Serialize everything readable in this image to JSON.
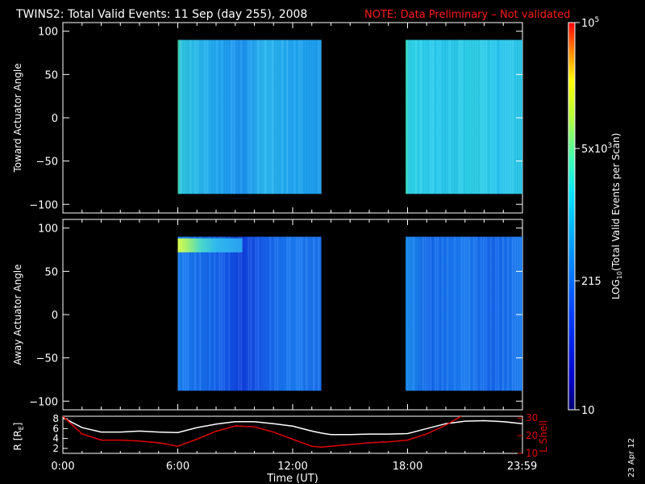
{
  "header": {
    "title": "TWINS2: Total Valid Events: 11 Sep (day 255), 2008",
    "note": "NOTE: Data Preliminary – Not validated"
  },
  "side_date": "23 Apr 12",
  "colors": {
    "background": "#000000",
    "axes": "#ffffff",
    "note": "#ff1a1a",
    "lshell": "#e00000",
    "radius": "#ffffff"
  },
  "chart_data": [
    {
      "type": "heatmap",
      "ylabel": "Toward Actuator Angle",
      "ylim": [
        -110,
        110
      ],
      "yticks": [
        -100,
        -50,
        0,
        50,
        100
      ],
      "xlim": [
        0,
        24
      ],
      "data_blocks": [
        {
          "start_hour": 6.0,
          "end_hour": 13.5,
          "angle_range": [
            -88,
            90
          ]
        },
        {
          "start_hour": 17.9,
          "end_hour": 24.0,
          "angle_range": [
            -88,
            90
          ]
        }
      ]
    },
    {
      "type": "heatmap",
      "ylabel": "Away Actuator Angle",
      "ylim": [
        -110,
        110
      ],
      "yticks": [
        -100,
        -50,
        0,
        50,
        100
      ],
      "xlim": [
        0,
        24
      ],
      "data_blocks": [
        {
          "start_hour": 6.0,
          "end_hour": 13.5,
          "angle_range": [
            -88,
            90
          ]
        },
        {
          "start_hour": 17.9,
          "end_hour": 24.0,
          "angle_range": [
            -88,
            90
          ]
        }
      ]
    },
    {
      "type": "line",
      "xlabel": "Time (UT)",
      "ylabel": "R [R",
      "ylabel_sub": "E",
      "ylabel_close": "]",
      "ylabel_right": "L Shell",
      "xlim": [
        0,
        24
      ],
      "xticks": [
        0,
        6,
        12,
        18,
        23.983
      ],
      "xtick_labels": [
        "0:00",
        "6:00",
        "12:00",
        "18:00",
        "23:59"
      ],
      "ylim_left": [
        1,
        8.5
      ],
      "yticks_left": [
        2,
        4,
        6,
        8
      ],
      "ylim_right": [
        10,
        31
      ],
      "yticks_right": [
        10,
        20,
        30
      ],
      "series": [
        {
          "axis": "left",
          "x": [
            0,
            1,
            2,
            3,
            4,
            5,
            6,
            7,
            8,
            9,
            10,
            11,
            12,
            13,
            13.5,
            14,
            15,
            16,
            17,
            18,
            19,
            20,
            21,
            22,
            23,
            24
          ],
          "y": [
            8.2,
            6.2,
            5.3,
            5.3,
            5.5,
            5.3,
            5.2,
            6.2,
            6.9,
            7.4,
            7.4,
            7.0,
            6.5,
            5.5,
            5.1,
            4.8,
            4.8,
            4.9,
            4.9,
            5.0,
            6.0,
            7.0,
            7.5,
            7.6,
            7.4,
            7.0
          ]
        },
        {
          "axis": "right",
          "x": [
            0,
            1,
            2,
            3,
            4,
            5,
            6,
            7,
            8,
            9,
            10,
            11,
            12,
            13,
            13.5,
            14,
            15,
            16,
            17,
            18,
            19,
            20,
            20.8
          ],
          "y": [
            31,
            21,
            17.5,
            17.5,
            17,
            16,
            14,
            18,
            22.5,
            25.5,
            25,
            22,
            18,
            14,
            13.5,
            14,
            15,
            16,
            16.5,
            17.5,
            21,
            26,
            31
          ]
        }
      ]
    }
  ],
  "colorbar": {
    "label": "LOG",
    "label_sub": "10",
    "label_rest": "(Total Valid  Events per Scan)",
    "ticks": [
      {
        "value": 10,
        "text": "10",
        "sup": ""
      },
      {
        "value": 215,
        "text": "215",
        "sup": ""
      },
      {
        "value": 5000,
        "text": "5x10",
        "sup": "3"
      },
      {
        "value": 100000,
        "text": "10",
        "sup": "5"
      }
    ],
    "range": [
      10,
      100000
    ]
  }
}
